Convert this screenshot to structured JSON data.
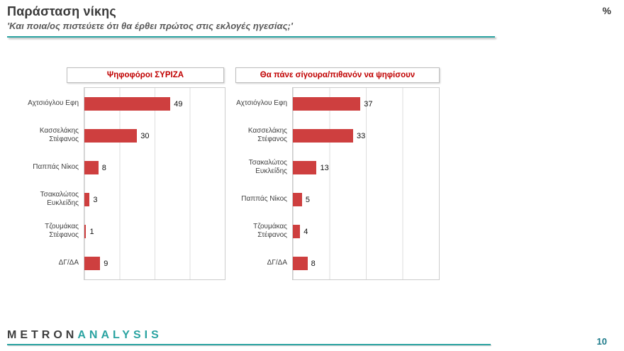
{
  "header": {
    "title": "Παράσταση νίκης",
    "subtitle": "'Και ποια/ος πιστεύετε ότι θα έρθει πρώτος στις εκλογές ηγεσίας;'",
    "unit": "%"
  },
  "chart_data": [
    {
      "type": "bar",
      "orientation": "horizontal",
      "title": "Ψηφοφόροι ΣΥΡΙΖΑ",
      "categories": [
        "Αχτσιόγλου Εφη",
        "Κασσελάκης Στέφανος",
        "Παππάς Νίκος",
        "Τσακαλώτος Ευκλείδης",
        "Τζουμάκας Στέφανος",
        "ΔΓ/ΔΑ"
      ],
      "values": [
        49,
        30,
        8,
        3,
        1,
        9
      ],
      "xlabel": "",
      "ylabel": "",
      "xlim": [
        0,
        80
      ],
      "gridline_step": 20,
      "grid": "vertical",
      "legend": "none",
      "bar_color": "#ce3f3f",
      "unit": "%"
    },
    {
      "type": "bar",
      "orientation": "horizontal",
      "title": "Θα πάνε σίγουρα/πιθανόν να ψηφίσουν",
      "categories": [
        "Αχτσιόγλου Εφη",
        "Κασσελάκης Στέφανος",
        "Τσακαλώτος Ευκλείδης",
        "Παππάς Νίκος",
        "Τζουμάκας Στέφανος",
        "ΔΓ/ΔΑ"
      ],
      "values": [
        37,
        33,
        13,
        5,
        4,
        8
      ],
      "xlabel": "",
      "ylabel": "",
      "xlim": [
        0,
        80
      ],
      "gridline_step": 20,
      "grid": "vertical",
      "legend": "none",
      "bar_color": "#ce3f3f",
      "unit": "%"
    }
  ],
  "footer": {
    "logo_primary": "METRON",
    "logo_secondary": "ANALYSIS",
    "page_number": "10"
  },
  "colors": {
    "accent_teal": "#2aa3a1",
    "bar_red": "#ce3f3f",
    "header_red": "#c00000"
  }
}
